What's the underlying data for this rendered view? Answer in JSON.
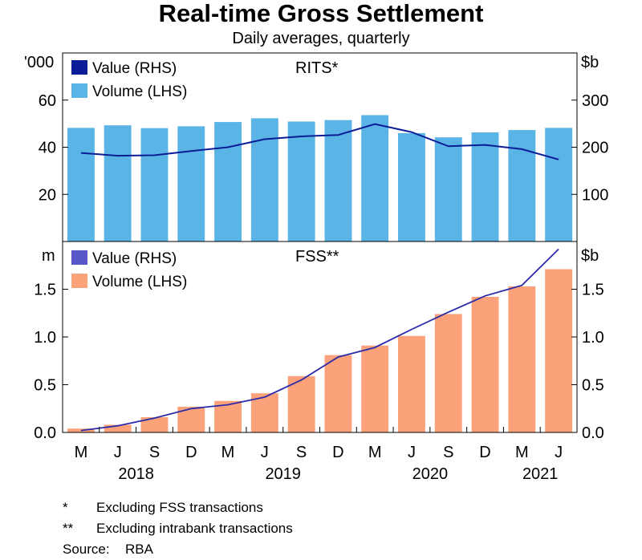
{
  "title": "Real-time Gross Settlement",
  "subtitle": "Daily averages, quarterly",
  "colors": {
    "rits_bar": "#5ab4e5",
    "rits_line": "#0a1d96",
    "rits_legend_line": "#0a1d96",
    "fss_bar": "#fba27a",
    "fss_line": "#2b2ca8",
    "fss_legend_line": "#5a58c8",
    "axis": "#000000"
  },
  "footnotes": [
    {
      "mark": "*",
      "text": "Excluding FSS transactions"
    },
    {
      "mark": "**",
      "text": "Excluding intrabank transactions"
    }
  ],
  "source": {
    "label": "Source:",
    "value": "RBA"
  },
  "chart_data": [
    {
      "type": "bar",
      "panel_title": "RITS*",
      "left_unit": "'000",
      "right_unit": "$b",
      "categories": [
        "M",
        "J",
        "S",
        "D",
        "M",
        "J",
        "S",
        "D",
        "M",
        "J",
        "S",
        "D",
        "M",
        "J"
      ],
      "year_labels": [
        {
          "label": "2018",
          "center_index": 1.5
        },
        {
          "label": "2019",
          "center_index": 5.5
        },
        {
          "label": "2020",
          "center_index": 9.5
        },
        {
          "label": "2021",
          "center_index": 12.5
        }
      ],
      "ylim_left": [
        0,
        80
      ],
      "ylim_right": [
        0,
        400
      ],
      "yticks_left": [
        20,
        40,
        60
      ],
      "yticks_right": [
        100,
        200,
        300
      ],
      "series": [
        {
          "name": "Volume (LHS)",
          "kind": "bar",
          "axis": "left",
          "values": [
            48.2,
            49.3,
            48.1,
            48.9,
            50.7,
            52.3,
            50.9,
            51.5,
            53.6,
            46.0,
            44.2,
            46.3,
            47.3,
            48.2
          ]
        },
        {
          "name": "Value (RHS)",
          "kind": "line",
          "axis": "right",
          "values": [
            188,
            182,
            183,
            192,
            200,
            217,
            223,
            226,
            249,
            232,
            202,
            205,
            196,
            174
          ]
        }
      ],
      "legend": [
        "Value (RHS)",
        "Volume (LHS)"
      ]
    },
    {
      "type": "bar",
      "panel_title": "FSS**",
      "left_unit": "m",
      "right_unit": "$b",
      "categories": [
        "M",
        "J",
        "S",
        "D",
        "M",
        "J",
        "S",
        "D",
        "M",
        "J",
        "S",
        "D",
        "M",
        "J"
      ],
      "ylim_left": [
        0,
        2.0
      ],
      "ylim_right": [
        0,
        2.0
      ],
      "yticks_left": [
        "0.0",
        "0.5",
        "1.0",
        "1.5"
      ],
      "yticks_right": [
        "0.0",
        "0.5",
        "1.0",
        "1.5"
      ],
      "series": [
        {
          "name": "Volume (LHS)",
          "kind": "bar",
          "axis": "left",
          "values": [
            0.04,
            0.08,
            0.16,
            0.27,
            0.33,
            0.41,
            0.59,
            0.81,
            0.91,
            1.01,
            1.24,
            1.42,
            1.53,
            1.71
          ]
        },
        {
          "name": "Value (RHS)",
          "kind": "line",
          "axis": "right",
          "values": [
            0.02,
            0.07,
            0.15,
            0.25,
            0.29,
            0.37,
            0.55,
            0.79,
            0.89,
            1.08,
            1.26,
            1.43,
            1.54,
            1.92
          ]
        }
      ],
      "legend": [
        "Value (RHS)",
        "Volume (LHS)"
      ]
    }
  ]
}
